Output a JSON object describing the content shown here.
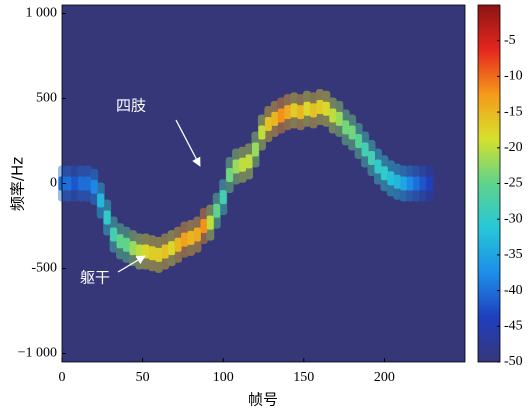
{
  "chart_data": {
    "type": "spectrogram",
    "x_label": "帧号",
    "y_label": "频率/Hz",
    "xlim": [
      0,
      250
    ],
    "xticks": [
      0,
      50,
      100,
      150,
      200
    ],
    "ylim": [
      -1050,
      1050
    ],
    "yticks": [
      {
        "value": -1000,
        "label": "−1 000"
      },
      -500,
      0,
      500,
      {
        "value": 1000,
        "label": "1 000"
      }
    ],
    "clim": [
      -50,
      0
    ],
    "cticks": [
      -5,
      -10,
      -15,
      -20,
      -25,
      -30,
      -35,
      -40,
      -45,
      -50
    ],
    "colormap": [
      "#353779",
      "#1f3fbf",
      "#1d8ee8",
      "#27c7d8",
      "#5ed38c",
      "#d6e12c",
      "#f59a1b",
      "#e5261e",
      "#8c1413"
    ],
    "x": [
      0,
      4,
      8,
      12,
      16,
      20,
      24,
      28,
      32,
      36,
      40,
      44,
      48,
      52,
      56,
      60,
      64,
      68,
      72,
      76,
      80,
      84,
      88,
      92,
      96,
      100,
      104,
      108,
      112,
      116,
      120,
      124,
      128,
      132,
      136,
      140,
      144,
      148,
      152,
      156,
      160,
      164,
      168,
      172,
      176,
      180,
      184,
      188,
      192,
      196,
      200,
      204,
      208,
      212,
      216,
      220,
      224,
      228
    ],
    "frequency": [
      0,
      0,
      0,
      0,
      0,
      -20,
      -100,
      -200,
      -300,
      -340,
      -360,
      -380,
      -400,
      -400,
      -410,
      -420,
      -400,
      -380,
      -360,
      -330,
      -320,
      -300,
      -250,
      -230,
      -160,
      -80,
      50,
      100,
      110,
      130,
      200,
      300,
      350,
      380,
      400,
      420,
      430,
      420,
      440,
      430,
      450,
      440,
      400,
      380,
      330,
      300,
      250,
      200,
      150,
      100,
      60,
      30,
      10,
      0,
      0,
      0,
      0,
      0
    ],
    "power": [
      -40,
      -40,
      -42,
      -40,
      -40,
      -38,
      -33,
      -30,
      -28,
      -25,
      -25,
      -22,
      -20,
      -18,
      -17,
      -17,
      -16,
      -18,
      -15,
      -13,
      -15,
      -14,
      -12,
      -20,
      -25,
      -28,
      -24,
      -22,
      -20,
      -20,
      -22,
      -20,
      -16,
      -15,
      -12,
      -14,
      -17,
      -15,
      -18,
      -16,
      -17,
      -18,
      -20,
      -22,
      -24,
      -24,
      -26,
      -28,
      -28,
      -30,
      -30,
      -32,
      -33,
      -35,
      -38,
      -40,
      -42,
      -44
    ],
    "annotations": [
      "四肢",
      "躯干"
    ]
  }
}
